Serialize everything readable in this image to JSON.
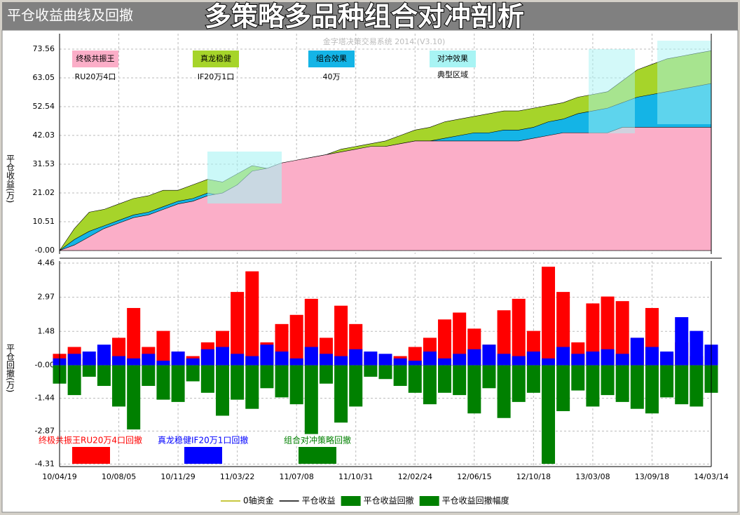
{
  "header": {
    "title": "平仓收益曲线及回撤",
    "overlay_title": "多策略多品种组合对冲剖析"
  },
  "chart_data": [
    {
      "type": "area",
      "subtitle": "金字塔决策交易系统 2014 (V3.10)",
      "y_label": "平仓收益(万)",
      "ylim": [
        -1.28,
        79.2
      ],
      "yticks": [
        {
          "value": 0,
          "label": "-0.00"
        },
        10.51,
        21.02,
        31.53,
        42.03,
        52.54,
        63.05,
        73.56
      ],
      "categories": [
        "10/04/19",
        null,
        null,
        null,
        "10/08/05",
        null,
        null,
        null,
        "10/11/29",
        null,
        null,
        null,
        "11/03/22",
        null,
        null,
        null,
        "11/07/08",
        null,
        null,
        null,
        "11/10/31",
        null,
        null,
        null,
        "12/02/24",
        null,
        null,
        null,
        "12/06/15",
        null,
        null,
        null,
        "12/10/18",
        null,
        null,
        null,
        "13/03/08",
        null,
        null,
        null,
        "13/09/18",
        null,
        null,
        null,
        "14/03/14"
      ],
      "series": [
        {
          "name": "真龙稳健",
          "note": "IF20万1口",
          "color": "#a6d42a",
          "values": [
            0,
            8,
            14,
            15,
            17,
            19,
            20,
            22,
            22,
            24,
            26,
            25,
            28,
            31,
            30,
            31,
            33,
            34,
            35,
            37,
            38,
            39,
            40,
            42,
            44,
            45,
            47,
            48,
            49,
            50,
            51,
            51,
            52,
            53,
            54,
            56,
            57,
            58,
            62,
            66,
            68,
            70,
            71,
            72,
            73
          ]
        },
        {
          "name": "组合效果",
          "note": "40万",
          "color": "#14b4e6",
          "values": [
            0,
            4,
            7,
            9,
            11,
            13,
            14,
            16,
            18,
            19,
            21,
            20,
            24,
            28,
            29,
            30,
            32,
            33,
            34,
            35,
            36,
            37,
            38,
            39,
            40,
            40,
            41,
            42,
            43,
            43,
            44,
            44,
            45,
            47,
            48,
            50,
            51,
            52,
            54,
            56,
            57,
            58,
            59,
            60,
            61
          ]
        },
        {
          "name": "终极共振王",
          "note": "RU20万4口",
          "color": "#fbaec8",
          "values": [
            0,
            2,
            5,
            8,
            10,
            12,
            13,
            15,
            17,
            18,
            20,
            21,
            24,
            29,
            30,
            32,
            33,
            34,
            35,
            36,
            37,
            38,
            38,
            39,
            40,
            40,
            40,
            40,
            40,
            40,
            40,
            40,
            41,
            42,
            43,
            43,
            43,
            43,
            45,
            45,
            45,
            45,
            45,
            45,
            45
          ]
        }
      ],
      "hedge": {
        "name": "对冲效果",
        "note": "典型区域",
        "color": "#a8f4f4"
      }
    },
    {
      "type": "bar",
      "y_label": "平仓回撤(万)",
      "ylim": [
        -4.42,
        4.55
      ],
      "yticks": [
        {
          "value": -4.31,
          "label": "-4.31"
        },
        -2.87,
        -1.44,
        {
          "value": 0,
          "label": "-0.00"
        },
        1.48,
        2.97,
        4.46
      ],
      "series": [
        {
          "name": "终极共振王RU20万4口回撤",
          "color": "#ff0000",
          "values": [
            0.5,
            0.8,
            0.3,
            0.6,
            1.2,
            2.5,
            0.8,
            1.5,
            0.6,
            0.4,
            1.0,
            1.5,
            3.2,
            4.1,
            1.0,
            1.8,
            2.2,
            2.9,
            1.2,
            2.6,
            1.8,
            0.5,
            0.3,
            0.4,
            0.8,
            1.2,
            2.0,
            2.3,
            1.6,
            0.9,
            2.4,
            2.9,
            1.5,
            4.3,
            3.2,
            1.0,
            2.7,
            3.0,
            2.8,
            1.2,
            2.5,
            0.5,
            1.0,
            0.4,
            0.6
          ]
        },
        {
          "name": "真龙稳健IF20万1口回撤",
          "color": "#0000ff",
          "values": [
            0.3,
            0.5,
            0.6,
            0.9,
            0.4,
            0.3,
            0.5,
            0.2,
            0.6,
            0.3,
            0.7,
            0.8,
            0.5,
            0.4,
            0.9,
            0.6,
            0.3,
            0.8,
            0.5,
            0.4,
            0.7,
            0.6,
            0.5,
            0.3,
            0.2,
            0.6,
            0.3,
            0.5,
            0.7,
            0.9,
            0.5,
            0.4,
            0.6,
            0.3,
            0.8,
            0.5,
            0.6,
            0.7,
            0.5,
            1.2,
            0.8,
            0.6,
            2.1,
            1.5,
            0.9
          ]
        },
        {
          "name": "组合对冲策略回撤",
          "color": "#008000",
          "values": [
            -0.8,
            -1.3,
            -0.5,
            -0.9,
            -1.8,
            -2.8,
            -0.9,
            -1.5,
            -1.6,
            -0.7,
            -1.2,
            -2.2,
            -1.5,
            -1.9,
            -1.0,
            -1.4,
            -1.7,
            -3.0,
            -0.8,
            -2.5,
            -1.8,
            -0.5,
            -0.6,
            -0.9,
            -1.2,
            -1.7,
            -1.2,
            -1.3,
            -2.1,
            -1.0,
            -2.3,
            -1.6,
            -1.2,
            -4.3,
            -2.0,
            -1.1,
            -1.8,
            -1.3,
            -1.6,
            -1.9,
            -2.1,
            -1.4,
            -1.7,
            -1.8,
            -1.2
          ]
        }
      ]
    }
  ],
  "footer_legend": [
    {
      "name": "0轴资金",
      "color": "#b5b500",
      "kind": "line"
    },
    {
      "name": "平仓收益",
      "color": "#000000",
      "kind": "line"
    },
    {
      "name": "平仓收益回撤",
      "color": "#008000",
      "kind": "box"
    },
    {
      "name": "平仓收益回撤幅度",
      "color": "#008000",
      "kind": "box"
    }
  ]
}
